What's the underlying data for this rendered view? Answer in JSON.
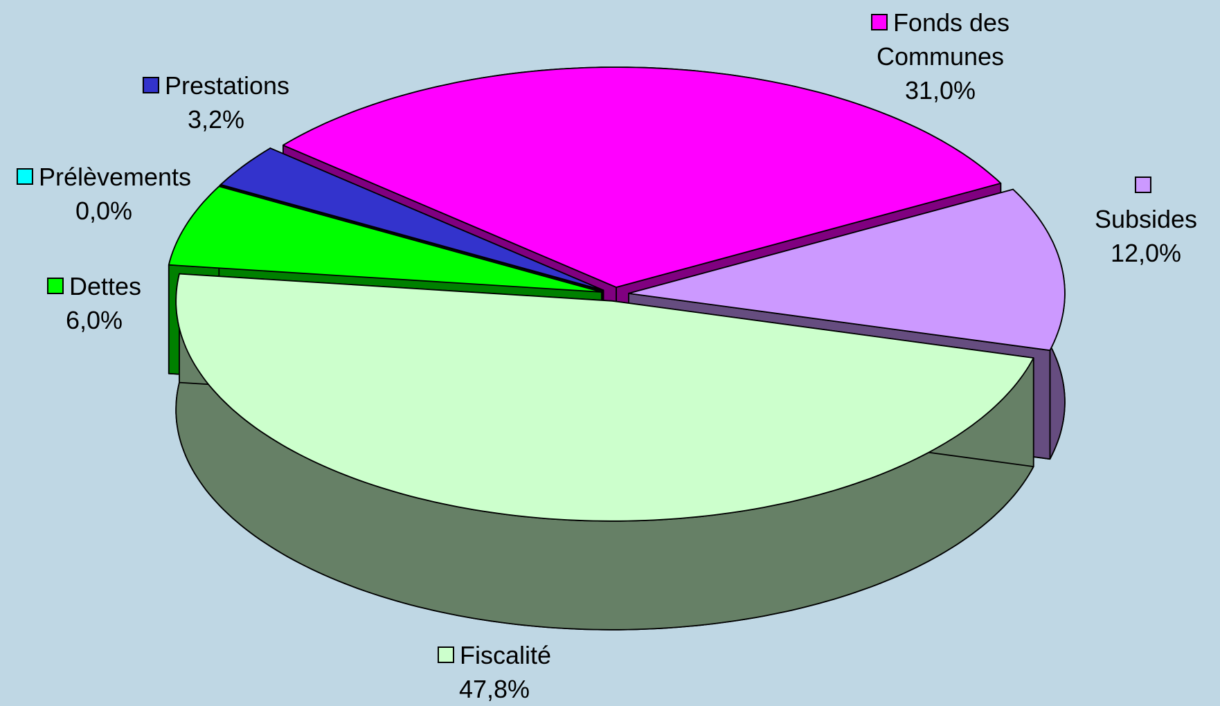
{
  "chart_data": {
    "type": "pie",
    "categories": [
      "Fiscalité",
      "Dettes",
      "Prélèvements",
      "Prestations",
      "Fonds des Communes",
      "Subsides"
    ],
    "values": [
      47.8,
      6.0,
      0.0,
      3.2,
      31.0,
      12.0
    ],
    "value_labels": [
      "47,8%",
      "6,0%",
      "0,0%",
      "3,2%",
      "31,0%",
      "12,0%"
    ],
    "colors": [
      "#ccffcc",
      "#00ff00",
      "#00ffff",
      "#3333cc",
      "#ff00ff",
      "#cc99ff"
    ]
  }
}
